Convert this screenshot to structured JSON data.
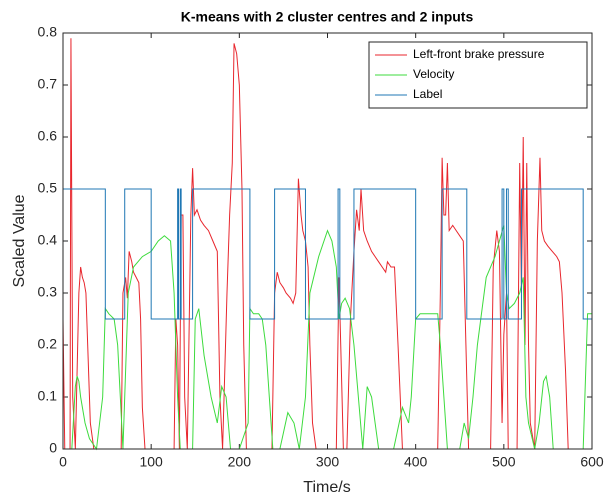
{
  "chart_data": {
    "type": "line",
    "title": "K-means with 2 cluster centres and 2 inputs",
    "xlabel": "Time/s",
    "ylabel": "Scaled Value",
    "xlim": [
      0,
      600
    ],
    "xticks": [
      0,
      100,
      200,
      300,
      400,
      500,
      600
    ],
    "ylim": [
      0,
      0.8
    ],
    "yticks": [
      0,
      0.1,
      0.2,
      0.3,
      0.4,
      0.5,
      0.6,
      0.7,
      0.8
    ],
    "legend": "top-right",
    "grid": false,
    "series": [
      {
        "name": "Left-front brake pressure",
        "color": "#e8262d",
        "x": [
          0,
          2,
          8,
          9,
          11,
          14,
          18,
          20,
          22,
          24,
          26,
          28,
          31,
          35,
          66,
          68,
          71,
          73,
          75,
          78,
          80,
          83,
          86,
          88,
          90,
          93,
          126,
          128,
          130,
          132,
          134,
          136,
          138,
          141,
          145,
          147,
          149,
          152,
          156,
          160,
          165,
          170,
          175,
          178,
          181,
          186,
          189,
          192,
          194,
          197,
          200,
          203,
          205,
          208,
          237,
          240,
          243,
          246,
          250,
          253,
          258,
          261,
          264,
          267,
          270,
          272,
          275,
          278,
          280,
          283,
          287,
          310,
          313,
          315,
          318,
          322,
          326,
          330,
          333,
          336,
          338,
          341,
          345,
          350,
          354,
          358,
          362,
          366,
          368,
          372,
          376,
          380,
          385,
          425,
          428,
          430,
          432,
          434,
          436,
          438,
          442,
          446,
          450,
          454,
          457,
          460,
          485,
          488,
          492,
          495,
          498,
          500,
          503,
          505,
          515,
          518,
          520,
          522,
          524,
          526,
          528,
          530,
          535,
          538,
          541,
          543,
          546,
          550,
          555,
          560,
          563,
          566,
          570,
          573,
          600
        ],
        "values": [
          0.25,
          0,
          0,
          0.79,
          0.1,
          0,
          0.3,
          0.35,
          0.33,
          0.32,
          0.3,
          0.2,
          0.05,
          0,
          0,
          0.3,
          0.33,
          0.29,
          0.38,
          0.36,
          0.34,
          0.33,
          0.32,
          0.25,
          0.08,
          0,
          0,
          0.25,
          0.2,
          0,
          0.45,
          0.45,
          0.1,
          0,
          0.45,
          0.54,
          0.45,
          0.46,
          0.44,
          0.43,
          0.42,
          0.4,
          0.38,
          0.1,
          0,
          0.3,
          0.45,
          0.55,
          0.78,
          0.76,
          0.7,
          0.5,
          0.2,
          0,
          0,
          0.3,
          0.34,
          0.32,
          0.31,
          0.3,
          0.29,
          0.28,
          0.3,
          0.52,
          0.45,
          0.42,
          0.4,
          0.35,
          0.2,
          0.05,
          0,
          0,
          0.33,
          0.2,
          0,
          0,
          0.25,
          0.38,
          0.46,
          0.42,
          0.5,
          0.42,
          0.4,
          0.38,
          0.37,
          0.36,
          0.35,
          0.34,
          0.36,
          0.35,
          0.35,
          0.2,
          0,
          0,
          0.3,
          0.56,
          0.45,
          0.45,
          0.55,
          0.42,
          0.43,
          0.42,
          0.41,
          0.4,
          0.2,
          0,
          0,
          0.35,
          0.42,
          0.38,
          0.05,
          0.22,
          0.3,
          0,
          0,
          0.55,
          0.3,
          0.6,
          0.2,
          0.55,
          0.2,
          0.05,
          0,
          0.4,
          0.56,
          0.42,
          0.4,
          0.39,
          0.38,
          0.37,
          0.36,
          0.3,
          0.15,
          0,
          0
        ]
      },
      {
        "name": "Velocity",
        "color": "#3ddb3d",
        "x": [
          0,
          10,
          14,
          16,
          18,
          20,
          25,
          30,
          38,
          45,
          48,
          52,
          58,
          62,
          65,
          68,
          70,
          74,
          80,
          90,
          100,
          108,
          115,
          122,
          126,
          130,
          133,
          147,
          150,
          154,
          160,
          168,
          175,
          180,
          185,
          190,
          200,
          210,
          212,
          216,
          222,
          226,
          230,
          234,
          238,
          246,
          255,
          262,
          268,
          275,
          280,
          290,
          300,
          305,
          310,
          313,
          316,
          320,
          325,
          330,
          335,
          340,
          345,
          350,
          358,
          375,
          385,
          392,
          395,
          400,
          405,
          415,
          425,
          428,
          432,
          436,
          450,
          455,
          460,
          465,
          470,
          480,
          490,
          495,
          500,
          503,
          506,
          512,
          518,
          522,
          525,
          528,
          535,
          540,
          545,
          548,
          552,
          556,
          590,
          595,
          600
        ],
        "values": [
          0,
          0,
          0.12,
          0.14,
          0.13,
          0.1,
          0.05,
          0.02,
          0,
          0.1,
          0.27,
          0.26,
          0.25,
          0.2,
          0.1,
          0,
          0.1,
          0.3,
          0.35,
          0.37,
          0.38,
          0.4,
          0.41,
          0.4,
          0.3,
          0.1,
          0,
          0,
          0.25,
          0.27,
          0.18,
          0.1,
          0.05,
          0.12,
          0.1,
          0,
          0,
          0.05,
          0.27,
          0.26,
          0.26,
          0.25,
          0.2,
          0.1,
          0,
          0,
          0.07,
          0.05,
          0,
          0.1,
          0.3,
          0.37,
          0.42,
          0.4,
          0.35,
          0.25,
          0.28,
          0.29,
          0.27,
          0.2,
          0.1,
          0,
          0.12,
          0.1,
          0,
          0,
          0.08,
          0.05,
          0.1,
          0.25,
          0.26,
          0.26,
          0.26,
          0.2,
          0.1,
          0,
          0,
          0.05,
          0.02,
          0.1,
          0.2,
          0.33,
          0.37,
          0.4,
          0.43,
          0.3,
          0.27,
          0.28,
          0.3,
          0.33,
          0.1,
          0.05,
          0,
          0.05,
          0.13,
          0.14,
          0.1,
          0,
          0,
          0.26,
          0.26
        ]
      },
      {
        "name": "Label",
        "color": "#1f77b4",
        "x": [
          0,
          48,
          48,
          70,
          70,
          100,
          100,
          130,
          130,
          131,
          131,
          133,
          133,
          134,
          134,
          147,
          147,
          212,
          212,
          240,
          240,
          275,
          275,
          312,
          312,
          314,
          314,
          330,
          330,
          400,
          400,
          430,
          430,
          458,
          458,
          498,
          498,
          500,
          500,
          503,
          503,
          505,
          505,
          520,
          520,
          590,
          590,
          600
        ],
        "values": [
          0.5,
          0.5,
          0.25,
          0.25,
          0.5,
          0.5,
          0.25,
          0.25,
          0.5,
          0.5,
          0.25,
          0.25,
          0.5,
          0.5,
          0.25,
          0.25,
          0.5,
          0.5,
          0.25,
          0.25,
          0.5,
          0.5,
          0.25,
          0.25,
          0.5,
          0.5,
          0.25,
          0.25,
          0.5,
          0.5,
          0.25,
          0.25,
          0.5,
          0.5,
          0.25,
          0.25,
          0.5,
          0.5,
          0.25,
          0.25,
          0.5,
          0.5,
          0.25,
          0.25,
          0.5,
          0.5,
          0.25,
          0.25
        ]
      }
    ]
  }
}
